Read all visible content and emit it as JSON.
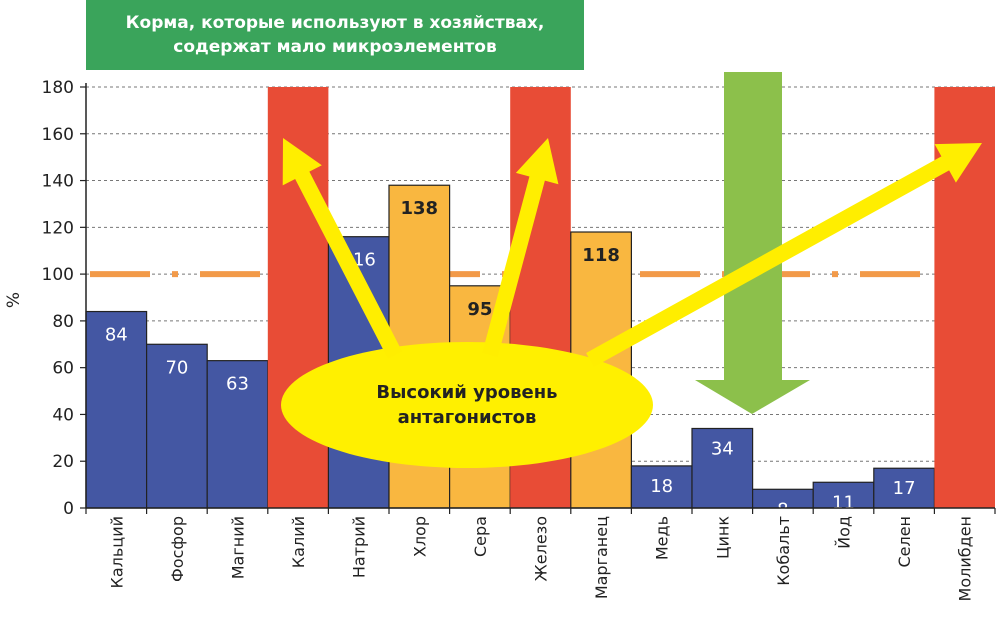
{
  "title_lines": [
    "Корма, которые используют в хозяйствах,",
    "содержат мало микроэлементов"
  ],
  "annotation_lines": [
    "Высокий уровень",
    "антагонистов"
  ],
  "colors": {
    "title_bg": "#3aa45b",
    "blue": "#4457a3",
    "yellow": "#f9b740",
    "red": "#e84c36",
    "green_arrow": "#8cc04b",
    "reference_line": "#f29a49",
    "ellipse": "#fff000",
    "arrows": "#ffee00"
  },
  "chart_data": {
    "type": "bar",
    "title": "Корма, которые используют в хозяйствах, содержат мало микроэлементов",
    "ylabel": "%",
    "ylim": [
      0,
      180
    ],
    "yticks": [
      0,
      20,
      40,
      60,
      80,
      100,
      120,
      140,
      160,
      180
    ],
    "grid": true,
    "reference_line": 100,
    "categories": [
      "Кальций",
      "Фосфор",
      "Магний",
      "Калий",
      "Натрий",
      "Хлор",
      "Сера",
      "Железо",
      "Марганец",
      "Медь",
      "Цинк",
      "Кобальт",
      "Йод",
      "Селен",
      "Молибден"
    ],
    "values": [
      84,
      70,
      63,
      180,
      116,
      138,
      95,
      180,
      118,
      18,
      34,
      8,
      11,
      17,
      180
    ],
    "value_labels": [
      "84",
      "70",
      "63",
      "",
      "116",
      "138",
      "95",
      "",
      "118",
      "18",
      "34",
      "8",
      "11",
      "17",
      ""
    ],
    "bar_colors": [
      "blue",
      "blue",
      "blue",
      "red",
      "blue",
      "yellow",
      "yellow",
      "red",
      "yellow",
      "blue",
      "blue",
      "blue",
      "blue",
      "blue",
      "red"
    ],
    "annotation": "Высокий уровень антагонистов"
  }
}
